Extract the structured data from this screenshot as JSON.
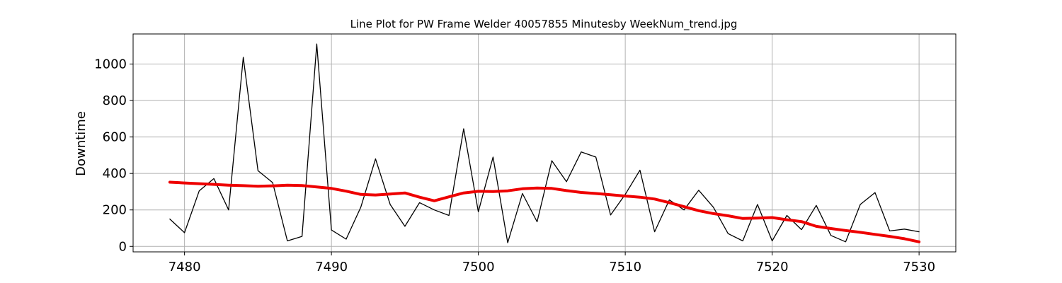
{
  "chart_data": {
    "type": "line",
    "title": "Line Plot for PW Frame Welder 40057855 Minutesby WeekNum_trend.jpg",
    "xlabel": "",
    "ylabel": "Downtime",
    "xlim": [
      7476.5,
      7532.5
    ],
    "ylim": [
      -30,
      1165
    ],
    "xticks": [
      7480,
      7490,
      7500,
      7510,
      7520,
      7530
    ],
    "yticks": [
      0,
      200,
      400,
      600,
      800,
      1000
    ],
    "grid": true,
    "legend": "none",
    "x": [
      7479,
      7480,
      7481,
      7482,
      7483,
      7484,
      7485,
      7486,
      7487,
      7488,
      7489,
      7490,
      7491,
      7492,
      7493,
      7494,
      7495,
      7496,
      7497,
      7498,
      7499,
      7500,
      7501,
      7502,
      7503,
      7504,
      7505,
      7506,
      7507,
      7508,
      7509,
      7510,
      7511,
      7512,
      7513,
      7514,
      7515,
      7516,
      7517,
      7518,
      7519,
      7520,
      7521,
      7522,
      7523,
      7524,
      7525,
      7526,
      7527,
      7528,
      7529,
      7530
    ],
    "series": [
      {
        "color": "#000000",
        "values": [
          150,
          75,
          305,
          372,
          200,
          1037,
          415,
          350,
          30,
          55,
          1110,
          90,
          40,
          215,
          480,
          230,
          110,
          240,
          200,
          170,
          645,
          190,
          490,
          20,
          290,
          135,
          470,
          355,
          518,
          490,
          172,
          285,
          418,
          80,
          255,
          200,
          308,
          215,
          70,
          30,
          230,
          30,
          170,
          92,
          225,
          60,
          25,
          230,
          295,
          85,
          95,
          80
        ]
      },
      {
        "color": "#ee0000",
        "values": [
          352,
          348,
          344,
          340,
          336,
          333,
          330,
          332,
          336,
          334,
          326,
          318,
          303,
          285,
          282,
          287,
          293,
          270,
          250,
          272,
          293,
          302,
          301,
          305,
          316,
          320,
          318,
          306,
          296,
          290,
          283,
          276,
          270,
          260,
          240,
          218,
          196,
          180,
          168,
          153,
          155,
          158,
          146,
          136,
          110,
          98,
          87,
          77,
          66,
          55,
          42,
          25
        ]
      }
    ]
  }
}
